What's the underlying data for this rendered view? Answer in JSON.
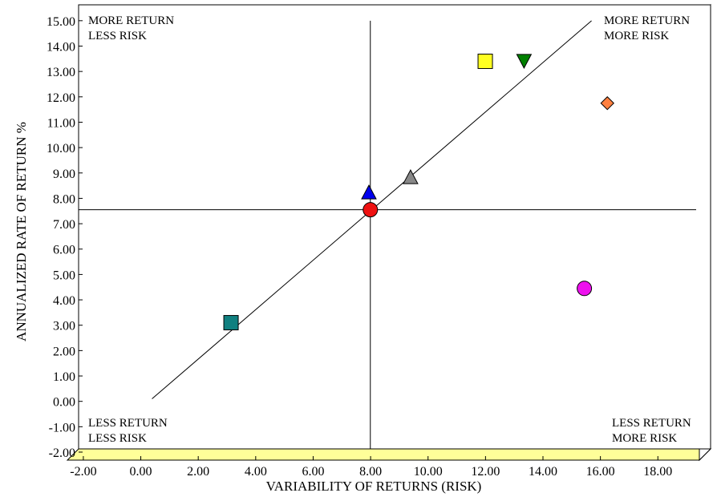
{
  "chart_data": {
    "type": "scatter",
    "title": "",
    "xlabel": "VARIABILITY OF RETURNS (RISK)",
    "ylabel": "ANNUALIZED RATE OF RETURN %",
    "xlim": [
      -2.5,
      19.5
    ],
    "ylim": [
      -2.0,
      15.5
    ],
    "x_ticks": [
      "-2.00",
      "0.00",
      "2.00",
      "4.00",
      "6.00",
      "8.00",
      "10.00",
      "12.00",
      "14.00",
      "16.00",
      "18.00"
    ],
    "x_tick_values": [
      -2,
      0,
      2,
      4,
      6,
      8,
      10,
      12,
      14,
      16,
      18
    ],
    "y_ticks": [
      "-2.00",
      "-1.00",
      "0.00",
      "1.00",
      "2.00",
      "3.00",
      "4.00",
      "5.00",
      "6.00",
      "7.00",
      "8.00",
      "9.00",
      "10.00",
      "11.00",
      "12.00",
      "13.00",
      "14.00",
      "15.00"
    ],
    "y_tick_values": [
      -2,
      -1,
      0,
      1,
      2,
      3,
      4,
      5,
      6,
      7,
      8,
      9,
      10,
      11,
      12,
      13,
      14,
      15
    ],
    "grid": false,
    "crosshair": {
      "x": 7.6,
      "y": 7.55
    },
    "diagonal_line": {
      "start": [
        0.0,
        0.1
      ],
      "end": [
        15.3,
        15.0
      ]
    },
    "quadrant_labels": {
      "top_left": [
        "MORE RETURN",
        "LESS RISK"
      ],
      "top_right": [
        "MORE RETURN",
        "MORE RISK"
      ],
      "bottom_left": [
        "LESS RETURN",
        "LESS RISK"
      ],
      "bottom_right": [
        "LESS RETURN",
        "MORE RISK"
      ]
    },
    "points": [
      {
        "x": 2.75,
        "y": 3.1,
        "marker": "square",
        "color": "#108080"
      },
      {
        "x": 7.55,
        "y": 8.2,
        "marker": "triangle-up",
        "color": "#0000ee"
      },
      {
        "x": 7.6,
        "y": 7.55,
        "marker": "circle-cross",
        "color": "#ee1111"
      },
      {
        "x": 9.0,
        "y": 8.8,
        "marker": "triangle-up",
        "color": "#888888"
      },
      {
        "x": 11.6,
        "y": 13.4,
        "marker": "square",
        "color": "#ffff22"
      },
      {
        "x": 12.95,
        "y": 13.45,
        "marker": "triangle-down",
        "color": "#008000"
      },
      {
        "x": 15.05,
        "y": 4.45,
        "marker": "circle",
        "color": "#ee11ee"
      },
      {
        "x": 15.85,
        "y": 11.75,
        "marker": "diamond",
        "color": "#ff8040"
      }
    ],
    "colors": {
      "floor": "#ffff99",
      "axis": "#000000"
    }
  }
}
